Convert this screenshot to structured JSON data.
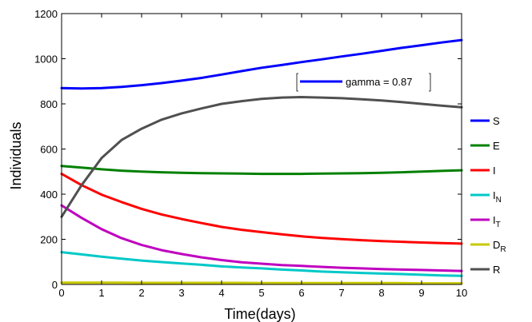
{
  "chart_data": {
    "type": "line",
    "title": "",
    "xlabel": "Time(days)",
    "ylabel": "Individuals",
    "xlim": [
      0,
      10
    ],
    "ylim": [
      0,
      1200
    ],
    "xticks": [
      0,
      1,
      2,
      3,
      4,
      5,
      6,
      7,
      8,
      9,
      10
    ],
    "yticks": [
      0,
      200,
      400,
      600,
      800,
      1000,
      1200
    ],
    "xtick_labels": [
      "0",
      "1",
      "2",
      "3",
      "4",
      "5",
      "6",
      "7",
      "8",
      "9",
      "10"
    ],
    "ytick_labels": [
      "0",
      "200",
      "400",
      "600",
      "800",
      "1000",
      "1200"
    ],
    "grid": false,
    "annotation": {
      "text": "gamma = 0.87",
      "color": "#0000ff"
    },
    "x": [
      0,
      0.5,
      1,
      1.5,
      2,
      2.5,
      3,
      3.5,
      4,
      4.5,
      5,
      5.5,
      6,
      6.5,
      7,
      7.5,
      8,
      8.5,
      9,
      9.5,
      10
    ],
    "series": [
      {
        "name": "S",
        "label_main": "S",
        "label_sub": "",
        "color": "#0000ff",
        "values": [
          870,
          868,
          870,
          875,
          883,
          892,
          903,
          915,
          930,
          945,
          960,
          972,
          985,
          997,
          1010,
          1022,
          1035,
          1048,
          1060,
          1072,
          1083
        ]
      },
      {
        "name": "E",
        "label_main": "E",
        "label_sub": "",
        "color": "#008000",
        "values": [
          525,
          518,
          510,
          504,
          500,
          497,
          495,
          493,
          492,
          491,
          490,
          490,
          490,
          491,
          492,
          493,
          495,
          497,
          500,
          503,
          506
        ]
      },
      {
        "name": "I",
        "label_main": "I",
        "label_sub": "",
        "color": "#ff0000",
        "values": [
          490,
          440,
          398,
          365,
          335,
          310,
          290,
          272,
          255,
          242,
          232,
          222,
          213,
          206,
          201,
          196,
          192,
          189,
          186,
          183,
          181
        ]
      },
      {
        "name": "I_N",
        "label_main": "I",
        "label_sub": "N",
        "color": "#00c8c8",
        "values": [
          143,
          133,
          123,
          114,
          106,
          99,
          93,
          87,
          80,
          75,
          71,
          66,
          62,
          57,
          54,
          51,
          48,
          46,
          43,
          40,
          38
        ]
      },
      {
        "name": "I_T",
        "label_main": "I",
        "label_sub": "T",
        "color": "#bf00bf",
        "values": [
          350,
          295,
          245,
          205,
          175,
          152,
          135,
          120,
          108,
          98,
          92,
          86,
          82,
          78,
          74,
          71,
          68,
          66,
          64,
          62,
          60
        ]
      },
      {
        "name": "D_R",
        "label_main": "D",
        "label_sub": "R",
        "color": "#c8c800",
        "values": [
          8,
          8,
          8,
          8,
          7,
          7,
          7,
          7,
          7,
          7,
          6,
          6,
          6,
          6,
          6,
          6,
          6,
          6,
          5,
          5,
          5
        ]
      },
      {
        "name": "R",
        "label_main": "R",
        "label_sub": "",
        "color": "#505050",
        "values": [
          300,
          440,
          560,
          640,
          690,
          730,
          758,
          780,
          800,
          812,
          822,
          828,
          830,
          828,
          825,
          820,
          815,
          808,
          800,
          792,
          785
        ]
      }
    ]
  }
}
